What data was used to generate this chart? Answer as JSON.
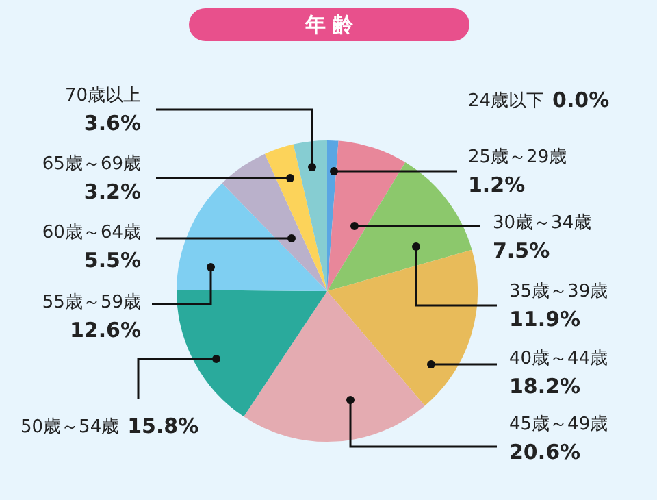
{
  "chart_data": {
    "type": "pie",
    "title": "年 齢",
    "categories": [
      "24歳以下",
      "25歳～29歳",
      "30歳～34歳",
      "35歳～39歳",
      "40歳～44歳",
      "45歳～49歳",
      "50歳～54歳",
      "55歳～59歳",
      "60歳～64歳",
      "65歳～69歳",
      "70歳以上"
    ],
    "values": [
      0.0,
      1.2,
      7.5,
      11.9,
      18.2,
      20.6,
      15.8,
      12.6,
      5.5,
      3.2,
      3.6
    ],
    "value_labels": [
      "0.0%",
      "1.2%",
      "7.5%",
      "11.9%",
      "18.2%",
      "20.6%",
      "15.8%",
      "12.6%",
      "5.5%",
      "3.2%",
      "3.6%"
    ],
    "colors": [
      "#3f8fd8",
      "#5aa6e3",
      "#e8879a",
      "#8cc86c",
      "#e8bb5a",
      "#e4abb1",
      "#2aaa9c",
      "#7fcff2",
      "#bab1cb",
      "#fcd35a",
      "#86cdd2"
    ],
    "legend": false
  }
}
